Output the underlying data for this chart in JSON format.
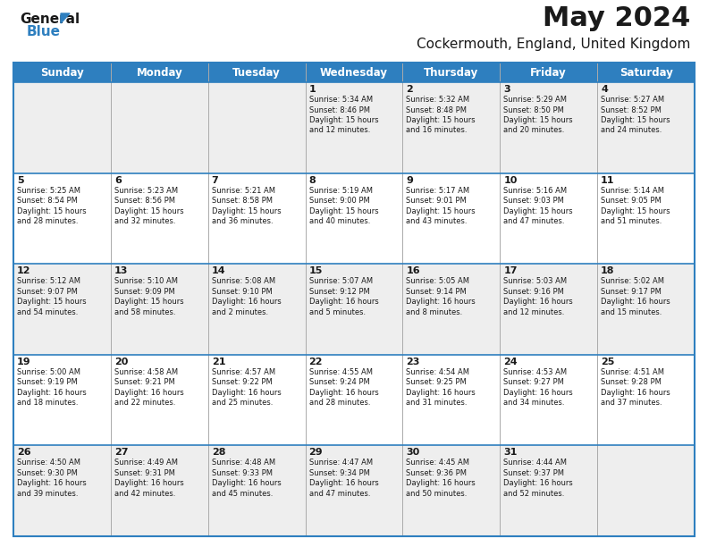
{
  "title": "May 2024",
  "subtitle": "Cockermouth, England, United Kingdom",
  "header_bg": "#2E7FBF",
  "header_text_color": "#FFFFFF",
  "days_of_week": [
    "Sunday",
    "Monday",
    "Tuesday",
    "Wednesday",
    "Thursday",
    "Friday",
    "Saturday"
  ],
  "calendar": [
    [
      {
        "day": "",
        "lines": []
      },
      {
        "day": "",
        "lines": []
      },
      {
        "day": "",
        "lines": []
      },
      {
        "day": "1",
        "lines": [
          "Sunrise: 5:34 AM",
          "Sunset: 8:46 PM",
          "Daylight: 15 hours",
          "and 12 minutes."
        ]
      },
      {
        "day": "2",
        "lines": [
          "Sunrise: 5:32 AM",
          "Sunset: 8:48 PM",
          "Daylight: 15 hours",
          "and 16 minutes."
        ]
      },
      {
        "day": "3",
        "lines": [
          "Sunrise: 5:29 AM",
          "Sunset: 8:50 PM",
          "Daylight: 15 hours",
          "and 20 minutes."
        ]
      },
      {
        "day": "4",
        "lines": [
          "Sunrise: 5:27 AM",
          "Sunset: 8:52 PM",
          "Daylight: 15 hours",
          "and 24 minutes."
        ]
      }
    ],
    [
      {
        "day": "5",
        "lines": [
          "Sunrise: 5:25 AM",
          "Sunset: 8:54 PM",
          "Daylight: 15 hours",
          "and 28 minutes."
        ]
      },
      {
        "day": "6",
        "lines": [
          "Sunrise: 5:23 AM",
          "Sunset: 8:56 PM",
          "Daylight: 15 hours",
          "and 32 minutes."
        ]
      },
      {
        "day": "7",
        "lines": [
          "Sunrise: 5:21 AM",
          "Sunset: 8:58 PM",
          "Daylight: 15 hours",
          "and 36 minutes."
        ]
      },
      {
        "day": "8",
        "lines": [
          "Sunrise: 5:19 AM",
          "Sunset: 9:00 PM",
          "Daylight: 15 hours",
          "and 40 minutes."
        ]
      },
      {
        "day": "9",
        "lines": [
          "Sunrise: 5:17 AM",
          "Sunset: 9:01 PM",
          "Daylight: 15 hours",
          "and 43 minutes."
        ]
      },
      {
        "day": "10",
        "lines": [
          "Sunrise: 5:16 AM",
          "Sunset: 9:03 PM",
          "Daylight: 15 hours",
          "and 47 minutes."
        ]
      },
      {
        "day": "11",
        "lines": [
          "Sunrise: 5:14 AM",
          "Sunset: 9:05 PM",
          "Daylight: 15 hours",
          "and 51 minutes."
        ]
      }
    ],
    [
      {
        "day": "12",
        "lines": [
          "Sunrise: 5:12 AM",
          "Sunset: 9:07 PM",
          "Daylight: 15 hours",
          "and 54 minutes."
        ]
      },
      {
        "day": "13",
        "lines": [
          "Sunrise: 5:10 AM",
          "Sunset: 9:09 PM",
          "Daylight: 15 hours",
          "and 58 minutes."
        ]
      },
      {
        "day": "14",
        "lines": [
          "Sunrise: 5:08 AM",
          "Sunset: 9:10 PM",
          "Daylight: 16 hours",
          "and 2 minutes."
        ]
      },
      {
        "day": "15",
        "lines": [
          "Sunrise: 5:07 AM",
          "Sunset: 9:12 PM",
          "Daylight: 16 hours",
          "and 5 minutes."
        ]
      },
      {
        "day": "16",
        "lines": [
          "Sunrise: 5:05 AM",
          "Sunset: 9:14 PM",
          "Daylight: 16 hours",
          "and 8 minutes."
        ]
      },
      {
        "day": "17",
        "lines": [
          "Sunrise: 5:03 AM",
          "Sunset: 9:16 PM",
          "Daylight: 16 hours",
          "and 12 minutes."
        ]
      },
      {
        "day": "18",
        "lines": [
          "Sunrise: 5:02 AM",
          "Sunset: 9:17 PM",
          "Daylight: 16 hours",
          "and 15 minutes."
        ]
      }
    ],
    [
      {
        "day": "19",
        "lines": [
          "Sunrise: 5:00 AM",
          "Sunset: 9:19 PM",
          "Daylight: 16 hours",
          "and 18 minutes."
        ]
      },
      {
        "day": "20",
        "lines": [
          "Sunrise: 4:58 AM",
          "Sunset: 9:21 PM",
          "Daylight: 16 hours",
          "and 22 minutes."
        ]
      },
      {
        "day": "21",
        "lines": [
          "Sunrise: 4:57 AM",
          "Sunset: 9:22 PM",
          "Daylight: 16 hours",
          "and 25 minutes."
        ]
      },
      {
        "day": "22",
        "lines": [
          "Sunrise: 4:55 AM",
          "Sunset: 9:24 PM",
          "Daylight: 16 hours",
          "and 28 minutes."
        ]
      },
      {
        "day": "23",
        "lines": [
          "Sunrise: 4:54 AM",
          "Sunset: 9:25 PM",
          "Daylight: 16 hours",
          "and 31 minutes."
        ]
      },
      {
        "day": "24",
        "lines": [
          "Sunrise: 4:53 AM",
          "Sunset: 9:27 PM",
          "Daylight: 16 hours",
          "and 34 minutes."
        ]
      },
      {
        "day": "25",
        "lines": [
          "Sunrise: 4:51 AM",
          "Sunset: 9:28 PM",
          "Daylight: 16 hours",
          "and 37 minutes."
        ]
      }
    ],
    [
      {
        "day": "26",
        "lines": [
          "Sunrise: 4:50 AM",
          "Sunset: 9:30 PM",
          "Daylight: 16 hours",
          "and 39 minutes."
        ]
      },
      {
        "day": "27",
        "lines": [
          "Sunrise: 4:49 AM",
          "Sunset: 9:31 PM",
          "Daylight: 16 hours",
          "and 42 minutes."
        ]
      },
      {
        "day": "28",
        "lines": [
          "Sunrise: 4:48 AM",
          "Sunset: 9:33 PM",
          "Daylight: 16 hours",
          "and 45 minutes."
        ]
      },
      {
        "day": "29",
        "lines": [
          "Sunrise: 4:47 AM",
          "Sunset: 9:34 PM",
          "Daylight: 16 hours",
          "and 47 minutes."
        ]
      },
      {
        "day": "30",
        "lines": [
          "Sunrise: 4:45 AM",
          "Sunset: 9:36 PM",
          "Daylight: 16 hours",
          "and 50 minutes."
        ]
      },
      {
        "day": "31",
        "lines": [
          "Sunrise: 4:44 AM",
          "Sunset: 9:37 PM",
          "Daylight: 16 hours",
          "and 52 minutes."
        ]
      },
      {
        "day": "",
        "lines": []
      }
    ]
  ],
  "logo_color_general": "#1A1A1A",
  "logo_color_blue": "#2E7FBF",
  "border_color": "#2E7FBF",
  "grid_color": "#AAAAAA",
  "row_bg_even": "#EEEEEE",
  "row_bg_odd": "#FFFFFF",
  "fig_width": 7.92,
  "fig_height": 6.12,
  "dpi": 100
}
